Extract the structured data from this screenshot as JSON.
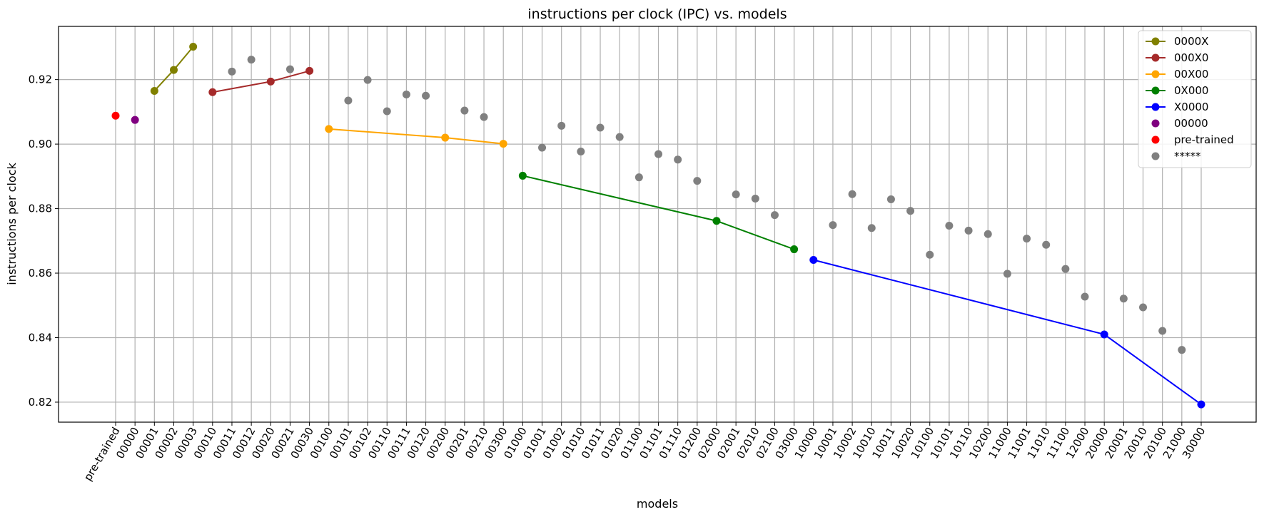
{
  "chart_data": {
    "type": "line",
    "title": "instructions per clock (IPC) vs. models",
    "xlabel": "models",
    "ylabel": "instructions per clock",
    "ylim": [
      0.8138,
      0.9365
    ],
    "yticks": [
      "0.82",
      "0.84",
      "0.86",
      "0.88",
      "0.90",
      "0.92"
    ],
    "grid": true,
    "legend_position": "top-right",
    "categories": [
      "pre-trained",
      "00000",
      "00001",
      "00002",
      "00003",
      "00010",
      "00011",
      "00012",
      "00020",
      "00021",
      "00030",
      "00100",
      "00101",
      "00102",
      "00110",
      "00111",
      "00120",
      "00200",
      "00201",
      "00210",
      "00300",
      "01000",
      "01001",
      "01002",
      "01010",
      "01011",
      "01020",
      "01100",
      "01101",
      "01110",
      "01200",
      "02000",
      "02001",
      "02010",
      "02100",
      "03000",
      "10000",
      "10001",
      "10002",
      "10010",
      "10011",
      "10020",
      "10100",
      "10101",
      "10110",
      "10200",
      "11000",
      "11001",
      "11010",
      "11100",
      "12000",
      "20000",
      "20001",
      "20010",
      "20100",
      "21000",
      "30000"
    ],
    "series": [
      {
        "name": "0000X",
        "kind": "line",
        "color": "#808000",
        "points": [
          [
            "00001",
            0.9165
          ],
          [
            "00002",
            0.923
          ],
          [
            "00003",
            0.9302
          ]
        ]
      },
      {
        "name": "000X0",
        "kind": "line",
        "color": "#a52a2a",
        "points": [
          [
            "00010",
            0.9161
          ],
          [
            "00020",
            0.9194
          ],
          [
            "00030",
            0.9227
          ]
        ]
      },
      {
        "name": "00X00",
        "kind": "line",
        "color": "#ffa500",
        "points": [
          [
            "00100",
            0.9047
          ],
          [
            "00200",
            0.902
          ],
          [
            "00300",
            0.9001
          ]
        ]
      },
      {
        "name": "0X000",
        "kind": "line",
        "color": "#008000",
        "points": [
          [
            "01000",
            0.8902
          ],
          [
            "02000",
            0.8762
          ],
          [
            "03000",
            0.8674
          ]
        ]
      },
      {
        "name": "X0000",
        "kind": "line",
        "color": "#0000ff",
        "points": [
          [
            "10000",
            0.8641
          ],
          [
            "20000",
            0.841
          ],
          [
            "30000",
            0.8193
          ]
        ]
      },
      {
        "name": "00000",
        "kind": "scatter",
        "color": "#800080",
        "points": [
          [
            "00000",
            0.9075
          ]
        ]
      },
      {
        "name": "pre-trained",
        "kind": "scatter",
        "color": "#ff0000",
        "points": [
          [
            "pre-trained",
            0.9088
          ]
        ]
      },
      {
        "name": "*****",
        "kind": "scatter",
        "color": "#808080",
        "points": [
          [
            "00011",
            0.9225
          ],
          [
            "00012",
            0.9262
          ],
          [
            "00021",
            0.9232
          ],
          [
            "00101",
            0.9135
          ],
          [
            "00102",
            0.9199
          ],
          [
            "00110",
            0.9102
          ],
          [
            "00111",
            0.9154
          ],
          [
            "00120",
            0.915
          ],
          [
            "00201",
            0.9104
          ],
          [
            "00210",
            0.9084
          ],
          [
            "01001",
            0.8989
          ],
          [
            "01002",
            0.9057
          ],
          [
            "01010",
            0.8977
          ],
          [
            "01011",
            0.9051
          ],
          [
            "01020",
            0.9022
          ],
          [
            "01100",
            0.8897
          ],
          [
            "01101",
            0.8969
          ],
          [
            "01110",
            0.8952
          ],
          [
            "01200",
            0.8886
          ],
          [
            "02001",
            0.8844
          ],
          [
            "02010",
            0.8831
          ],
          [
            "02100",
            0.878
          ],
          [
            "10001",
            0.8749
          ],
          [
            "10002",
            0.8845
          ],
          [
            "10010",
            0.874
          ],
          [
            "10011",
            0.8829
          ],
          [
            "10020",
            0.8793
          ],
          [
            "10100",
            0.8657
          ],
          [
            "10101",
            0.8747
          ],
          [
            "10110",
            0.8732
          ],
          [
            "10200",
            0.8721
          ],
          [
            "11000",
            0.8598
          ],
          [
            "11001",
            0.8707
          ],
          [
            "11010",
            0.8688
          ],
          [
            "11100",
            0.8613
          ],
          [
            "12000",
            0.8527
          ],
          [
            "20001",
            0.8521
          ],
          [
            "20010",
            0.8494
          ],
          [
            "20100",
            0.8421
          ],
          [
            "21000",
            0.8362
          ]
        ]
      }
    ],
    "legend": [
      "0000X",
      "000X0",
      "00X00",
      "0X000",
      "X0000",
      "00000",
      "pre-trained",
      "*****"
    ]
  }
}
